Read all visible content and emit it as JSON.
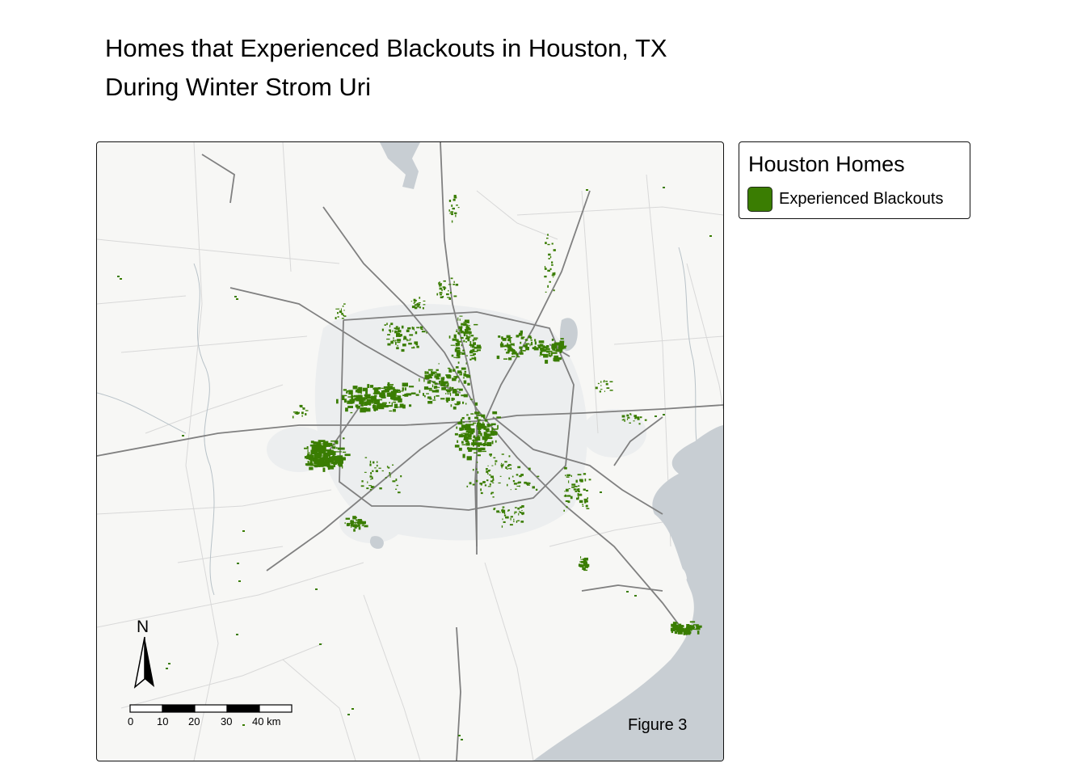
{
  "title_line1": "Homes that Experienced Blackouts in Houston, TX",
  "title_line2": "During Winter Strom Uri",
  "legend": {
    "title": "Houston Homes",
    "item_label": "Experienced Blackouts",
    "item_color": "#3a7d02"
  },
  "figure_label": "Figure 3",
  "north_label": "N",
  "scale_labels": [
    "0",
    "10",
    "20",
    "30",
    "40 km"
  ],
  "colors": {
    "basemap_land": "#f7f7f5",
    "water": "#c8ced3",
    "highway": "#808080",
    "minor_road": "#d8d8d8",
    "urban": "#eceeef",
    "blackout": "#3a7d02"
  }
}
